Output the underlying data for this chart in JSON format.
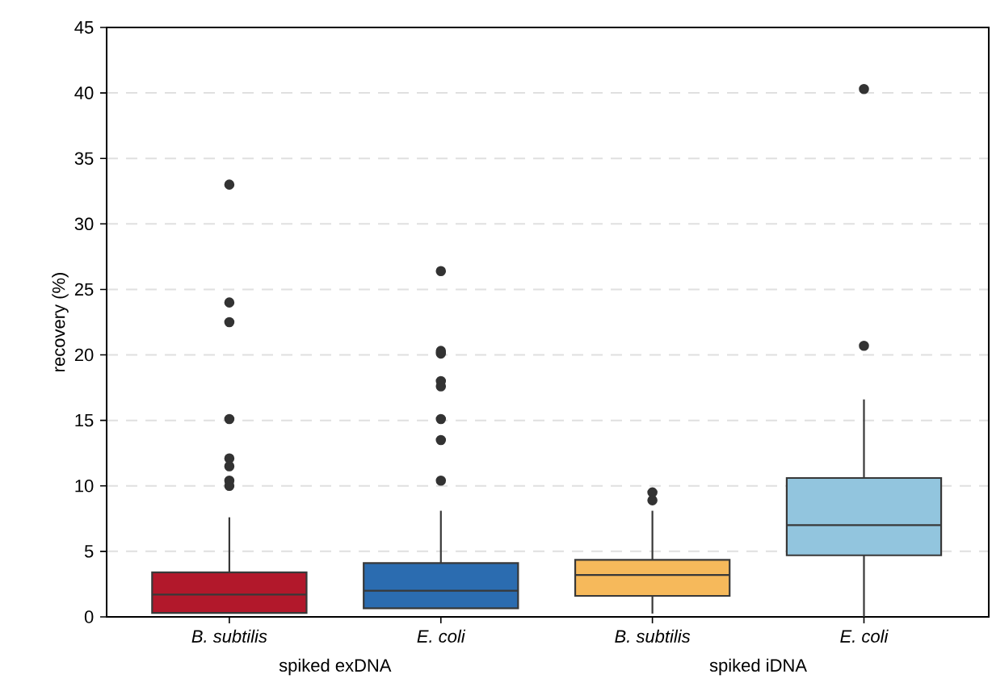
{
  "chart_data": {
    "type": "box",
    "ylabel": "recovery (%)",
    "categories": [
      "B. subtilis",
      "E. coli",
      "B. subtilis",
      "E. coli"
    ],
    "annotations": [
      "spiked exDNA",
      "spiked iDNA"
    ],
    "colors": [
      "#b2182b",
      "#2b6cb0",
      "#f6b95b",
      "#92c5de"
    ],
    "boxes": [
      {
        "low": null,
        "q1": 0.3,
        "median": 1.7,
        "q3": 3.4,
        "high": 7.6,
        "outliers": [
          33.0,
          24.0,
          22.5,
          15.1,
          12.1,
          11.5,
          10.4,
          10.0
        ]
      },
      {
        "low": null,
        "q1": 0.65,
        "median": 2.0,
        "q3": 4.1,
        "high": 8.1,
        "outliers": [
          26.4,
          20.3,
          20.1,
          18.0,
          17.6,
          15.1,
          13.5,
          10.4
        ]
      },
      {
        "low": 0.25,
        "q1": 1.6,
        "median": 3.2,
        "q3": 4.35,
        "high": 8.1,
        "outliers": [
          9.5,
          8.9
        ]
      },
      {
        "low": 0,
        "q1": 4.7,
        "median": 7.0,
        "q3": 10.6,
        "high": 16.6,
        "outliers": [
          40.3,
          20.7
        ]
      }
    ],
    "ylim": [
      0,
      45
    ],
    "yticks": [
      0,
      5,
      10,
      15,
      20,
      25,
      30,
      35,
      40,
      45
    ],
    "grid": "y"
  }
}
